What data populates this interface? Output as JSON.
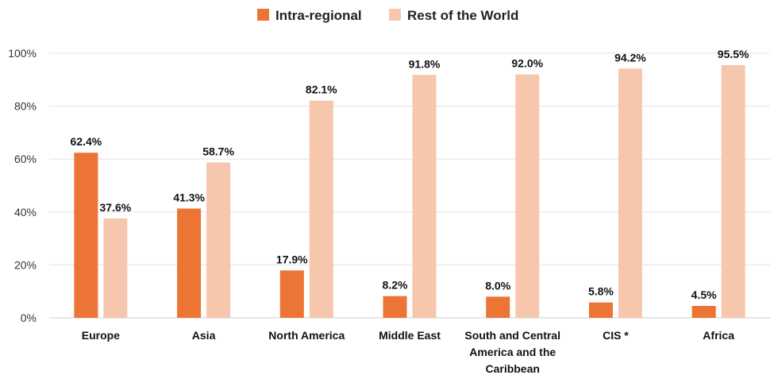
{
  "chart_data": {
    "type": "bar",
    "categories": [
      [
        "Europe"
      ],
      [
        "Asia"
      ],
      [
        "North America"
      ],
      [
        "Middle East"
      ],
      [
        "South and Central",
        "America and the",
        "Caribbean"
      ],
      [
        "CIS  *"
      ],
      [
        "Africa"
      ]
    ],
    "series": [
      {
        "name": "Intra-regional",
        "color": "#ec7434",
        "values": [
          62.4,
          41.3,
          17.9,
          8.2,
          8.0,
          5.8,
          4.5
        ],
        "labels": [
          "62.4%",
          "41.3%",
          "17.9%",
          "8.2%",
          "8.0%",
          "5.8%",
          "4.5%"
        ]
      },
      {
        "name": "Rest of the World",
        "color": "#f6c7ad",
        "values": [
          37.6,
          58.7,
          82.1,
          91.8,
          92.0,
          94.2,
          95.5
        ],
        "labels": [
          "37.6%",
          "58.7%",
          "82.1%",
          "91.8%",
          "92.0%",
          "94.2%",
          "95.5%"
        ]
      }
    ],
    "y_ticks": [
      "0%",
      "20%",
      "40%",
      "60%",
      "80%",
      "100%"
    ],
    "ylim": [
      0,
      100
    ],
    "grid": true,
    "legend_position": "top-center"
  }
}
